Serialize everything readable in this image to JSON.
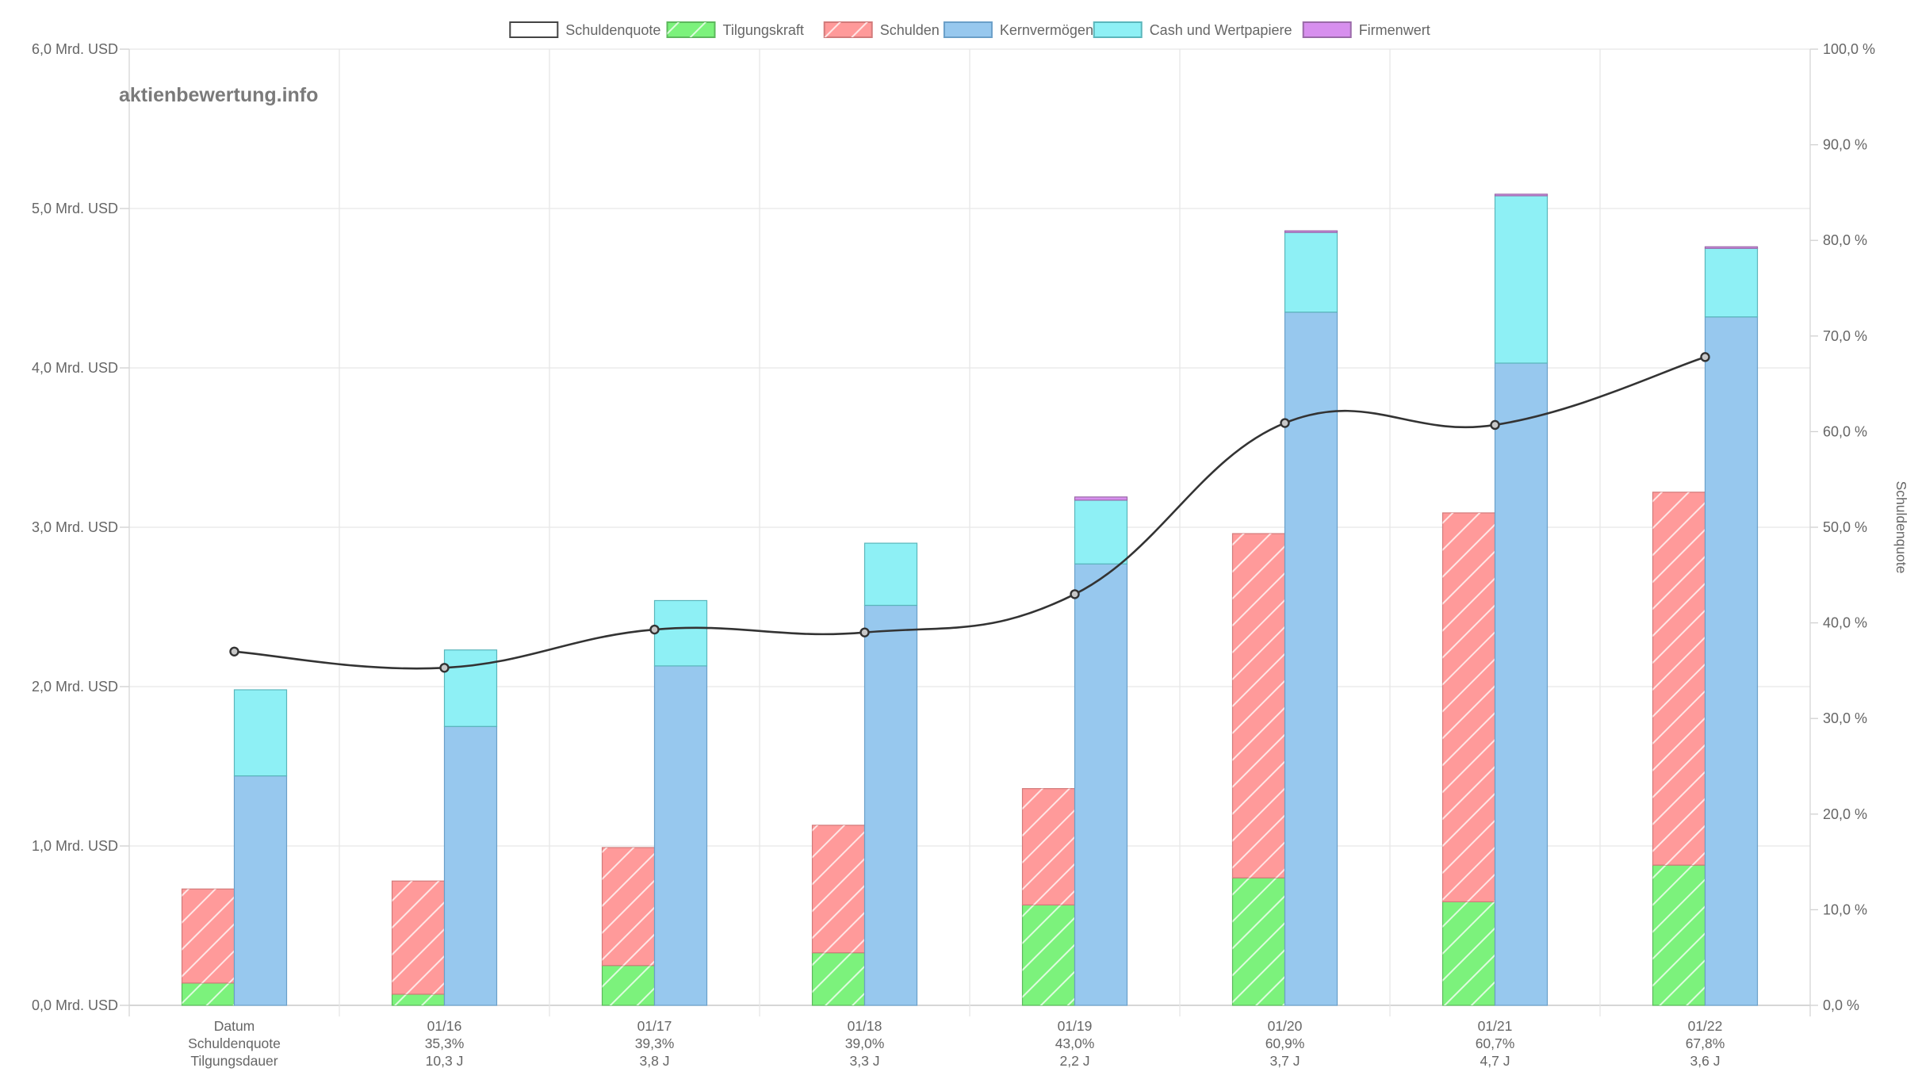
{
  "watermark": "aktienbewertung.info",
  "chart_data": {
    "type": "bar",
    "categories": [
      "Datum",
      "01/16",
      "01/17",
      "01/18",
      "01/19",
      "01/20",
      "01/21",
      "01/22"
    ],
    "row_labels": [
      [
        "Datum",
        "Schuldenquote",
        "Tilgungsdauer"
      ],
      [
        "01/16",
        "35,3%",
        "10,3 J"
      ],
      [
        "01/17",
        "39,3%",
        "3,8 J"
      ],
      [
        "01/18",
        "39,0%",
        "3,3 J"
      ],
      [
        "01/19",
        "43,0%",
        "2,2 J"
      ],
      [
        "01/20",
        "60,9%",
        "3,7 J"
      ],
      [
        "01/21",
        "60,7%",
        "4,7 J"
      ],
      [
        "01/22",
        "67,8%",
        "3,6 J"
      ]
    ],
    "legend": [
      {
        "name": "Schuldenquote",
        "color": "#ffffff",
        "border": "#444444",
        "hatch": false
      },
      {
        "name": "Tilgungskraft",
        "color": "#7cf27c",
        "border": "#5cb85c",
        "hatch": true
      },
      {
        "name": "Schulden",
        "color": "#ff9a9a",
        "border": "#d27a7a",
        "hatch": true
      },
      {
        "name": "Kernvermögen",
        "color": "#97c8ee",
        "border": "#6a9fc8",
        "hatch": false
      },
      {
        "name": "Cash und Wertpapiere",
        "color": "#8ef0f5",
        "border": "#5ab6bb",
        "hatch": false
      },
      {
        "name": "Firmenwert",
        "color": "#d78fee",
        "border": "#9a6aa8",
        "hatch": false
      }
    ],
    "left_axis": {
      "ylim": [
        0,
        6
      ],
      "ticks": [
        "0,0 Mrd. USD",
        "1,0 Mrd. USD",
        "2,0 Mrd. USD",
        "3,0 Mrd. USD",
        "4,0 Mrd. USD",
        "5,0 Mrd. USD",
        "6,0 Mrd. USD"
      ]
    },
    "right_axis": {
      "label": "Schuldenquote",
      "ylim": [
        0,
        100
      ],
      "ticks": [
        "0,0 %",
        "10,0 %",
        "20,0 %",
        "30,0 %",
        "40,0 %",
        "50,0 %",
        "60,0 %",
        "70,0 %",
        "80,0 %",
        "90,0 %",
        "100,0 %"
      ]
    },
    "series": [
      {
        "name": "Tilgungskraft",
        "stack": "debt",
        "values": [
          0.14,
          0.07,
          0.25,
          0.33,
          0.63,
          0.8,
          0.65,
          0.88
        ]
      },
      {
        "name": "Schulden",
        "stack": "debt",
        "values": [
          0.59,
          0.71,
          0.74,
          0.8,
          0.73,
          2.16,
          2.44,
          2.34
        ]
      },
      {
        "name": "Kernvermögen",
        "stack": "assets",
        "values": [
          1.44,
          1.75,
          2.13,
          2.51,
          2.77,
          4.35,
          4.03,
          4.32
        ]
      },
      {
        "name": "Cash und Wertpapiere",
        "stack": "assets",
        "values": [
          0.54,
          0.48,
          0.41,
          0.39,
          0.4,
          0.5,
          1.05,
          0.43
        ]
      },
      {
        "name": "Firmenwert",
        "stack": "assets",
        "values": [
          0,
          0,
          0,
          0,
          0.02,
          0.01,
          0.01,
          0.01
        ]
      },
      {
        "name": "Schuldenquote",
        "type": "line",
        "axis": "right",
        "values": [
          37.0,
          35.3,
          39.3,
          39.0,
          43.0,
          60.9,
          60.7,
          67.8
        ]
      }
    ],
    "grid": true,
    "legend_position": "top"
  }
}
